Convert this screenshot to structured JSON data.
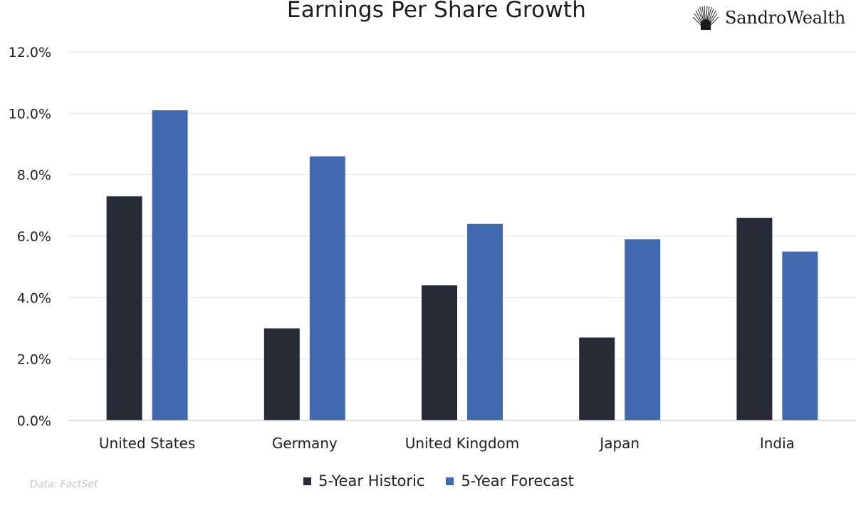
{
  "brand": {
    "name": "SandroWealth",
    "logo_icon": "sunburst-icon"
  },
  "source_note": "Data: FactSet",
  "colors": {
    "historic": "#262b36",
    "forecast": "#4169b0",
    "grid": "#e3e3e3",
    "axis": "#d0d0d0",
    "text": "#1f1f1f"
  },
  "chart_data": {
    "type": "bar",
    "title": "Earnings Per Share Growth",
    "xlabel": "",
    "ylabel": "",
    "ylim": [
      0,
      12
    ],
    "yticks": [
      0,
      2,
      4,
      6,
      8,
      10,
      12
    ],
    "ytick_labels": [
      "0.0%",
      "2.0%",
      "4.0%",
      "6.0%",
      "8.0%",
      "10.0%",
      "12.0%"
    ],
    "grid": true,
    "legend_position": "bottom",
    "categories": [
      "United States",
      "Germany",
      "United Kingdom",
      "Japan",
      "India"
    ],
    "series": [
      {
        "name": "5-Year Historic",
        "values": [
          7.3,
          3.0,
          4.4,
          2.7,
          6.6
        ]
      },
      {
        "name": "5-Year Forecast",
        "values": [
          10.1,
          8.6,
          6.4,
          5.9,
          5.5
        ]
      }
    ]
  }
}
